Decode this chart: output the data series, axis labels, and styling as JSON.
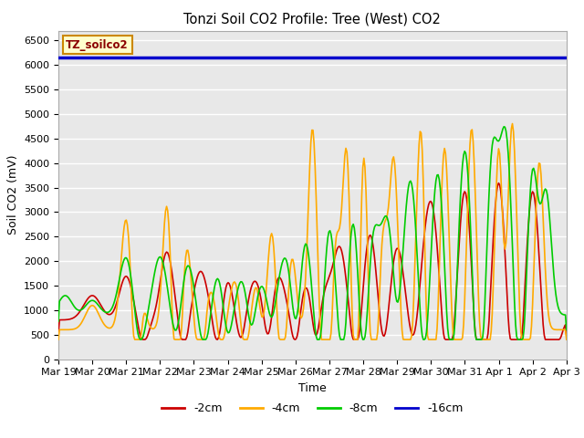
{
  "title": "Tonzi Soil CO2 Profile: Tree (West) CO2",
  "xlabel": "Time",
  "ylabel": "Soil CO2 (mV)",
  "ylim": [
    0,
    6700
  ],
  "yticks": [
    0,
    500,
    1000,
    1500,
    2000,
    2500,
    3000,
    3500,
    4000,
    4500,
    5000,
    5500,
    6000,
    6500
  ],
  "bg_color": "#e8e8e8",
  "fig_bg_color": "#ffffff",
  "colors": {
    "-2cm": "#cc0000",
    "-4cm": "#ffaa00",
    "-8cm": "#00cc00",
    "-16cm": "#0000cc"
  },
  "horizontal_line_value": 6150,
  "legend_box_color": "#ffffcc",
  "legend_box_edge": "#cc8800",
  "legend_box_text": "TZ_soilco2",
  "x_tick_labels": [
    "Mar 19",
    "Mar 20",
    "Mar 21",
    "Mar 22",
    "Mar 23",
    "Mar 24",
    "Mar 25",
    "Mar 26",
    "Mar 27",
    "Mar 28",
    "Mar 29",
    "Mar 30",
    "Mar 31",
    "Apr 1",
    "Apr 2",
    "Apr 3"
  ],
  "n_points": 480
}
